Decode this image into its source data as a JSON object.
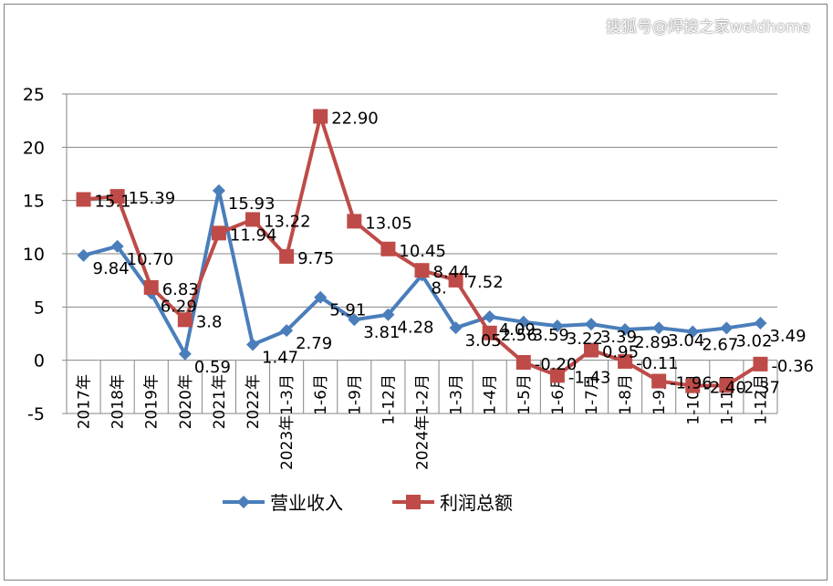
{
  "watermark": "搜狐号@焊接之家weldhome",
  "colors": {
    "revenue": "#4a7ebb",
    "profit": "#be4b48",
    "grid": "#868686",
    "axis": "#000000"
  },
  "chart_data": {
    "type": "line",
    "ylim": [
      -5,
      25
    ],
    "yticks": [
      -5,
      0,
      5,
      10,
      15,
      20,
      25
    ],
    "grid": true,
    "legend_position": "bottom",
    "categories": [
      "2017年",
      "2018年",
      "2019年",
      "2020年",
      "2021年",
      "2022年",
      "2023年1-3月",
      "1-6月",
      "1-9月",
      "1-12月",
      "2024年1-2月",
      "1-3月",
      "1-4月",
      "1-5月",
      "1-6月",
      "1-7月",
      "1-8月",
      "1-9月",
      "1-10月",
      "1-11月",
      "1-12月"
    ],
    "series": [
      {
        "name": "营业收入",
        "marker": "diamond",
        "values": [
          9.84,
          10.7,
          6.29,
          0.59,
          15.93,
          1.47,
          2.79,
          5.91,
          3.81,
          4.28,
          8.0,
          3.05,
          4.09,
          3.59,
          3.22,
          3.39,
          2.89,
          3.04,
          2.67,
          3.02,
          3.49
        ],
        "labels": [
          "9.84",
          "10.70",
          "6.29",
          "0.59",
          "15.93",
          "1.47",
          "2.79",
          "5.91",
          "3.81",
          "4.28",
          "8.",
          "3.05",
          "4.09",
          "3.59",
          "3.22",
          "3.39",
          "2.89",
          "3.04",
          "2.67",
          "3.02",
          "3.49"
        ]
      },
      {
        "name": "利润总额",
        "marker": "square",
        "values": [
          15.1,
          15.39,
          6.83,
          3.8,
          11.94,
          13.22,
          9.75,
          22.9,
          13.05,
          10.45,
          8.44,
          7.52,
          2.56,
          -0.2,
          -1.43,
          0.95,
          -0.11,
          -1.96,
          -2.4,
          -2.37,
          -0.36
        ],
        "labels": [
          "15.1",
          "15.39",
          "6.83",
          "3.8",
          "11.94",
          "13.22",
          "9.75",
          "22.90",
          "13.05",
          "10.45",
          "8.44",
          "7.52",
          "2.56",
          "-0.20",
          "-1.43",
          "0.95",
          "-0.11",
          "-1.96",
          "-2.40",
          "-2.37",
          "-0.36"
        ]
      }
    ]
  }
}
